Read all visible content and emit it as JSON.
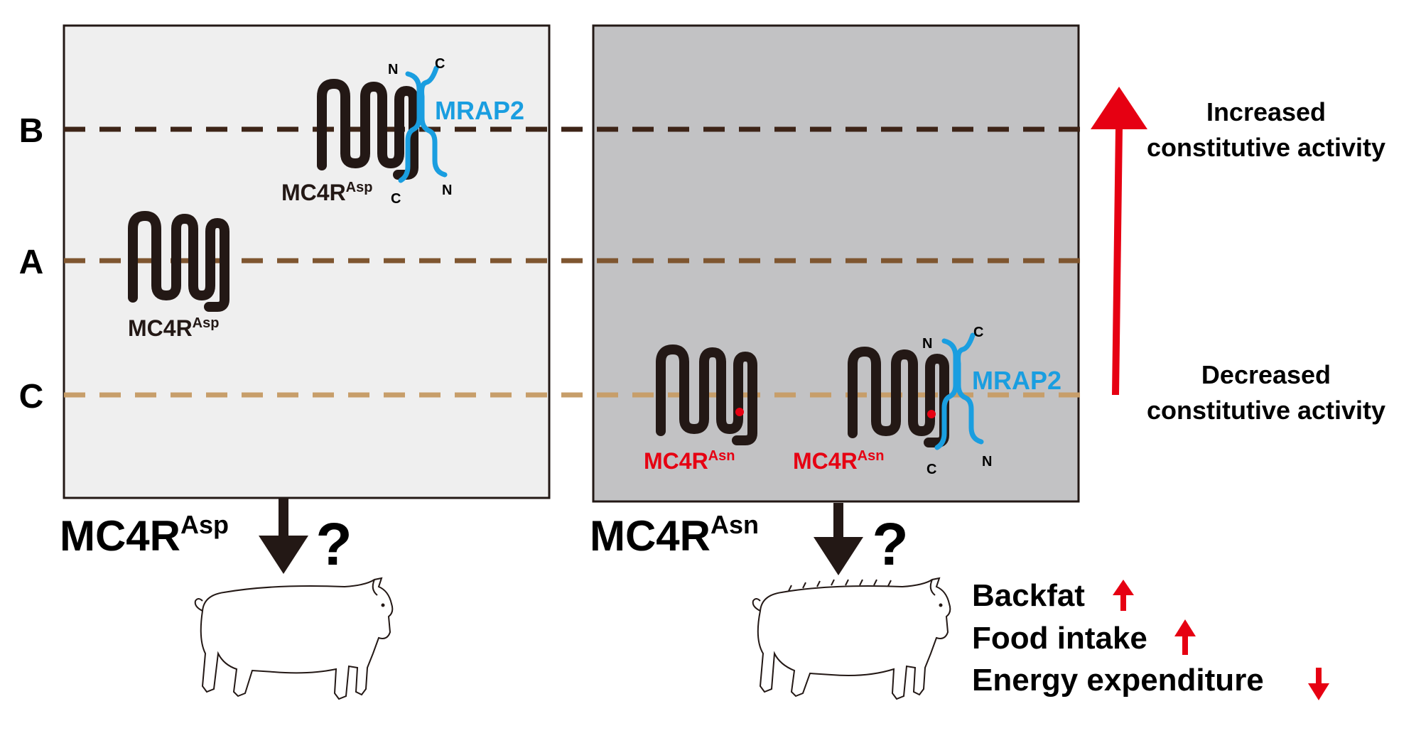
{
  "levels": {
    "b": "B",
    "a": "A",
    "c": "C"
  },
  "colors": {
    "line_b": "#3d2417",
    "line_a": "#7f5630",
    "line_c": "#c79e6a",
    "panel_left": "#efefef",
    "panel_right": "#c2c2c4",
    "receptor": "#231815",
    "mrap2": "#1a9ee0",
    "red": "#e60012"
  },
  "left_panel": {
    "receptor_top": {
      "label": "MC4R",
      "sup": "Asp"
    },
    "mrap2_label": "MRAP2",
    "mrap2_termini": {
      "n_top": "N",
      "c_top": "C",
      "c_bottom": "C",
      "n_bottom": "N"
    },
    "receptor_alone": {
      "label": "MC4R",
      "sup": "Asp"
    },
    "below_label": {
      "label": "MC4R",
      "sup": "Asp"
    },
    "question": "?"
  },
  "right_panel": {
    "receptor_alone": {
      "label": "MC4R",
      "sup": "Asn"
    },
    "receptor_complex": {
      "label": "MC4R",
      "sup": "Asn"
    },
    "mrap2_label": "MRAP2",
    "mrap2_termini": {
      "n_top": "N",
      "c_top": "C",
      "c_bottom": "C",
      "n_bottom": "N"
    },
    "below_label": {
      "label": "MC4R",
      "sup": "Asn"
    },
    "question": "?"
  },
  "activity": {
    "increased_line1": "Increased",
    "increased_line2": "constitutive activity",
    "decreased_line1": "Decreased",
    "decreased_line2": "constitutive activity"
  },
  "phenotypes": {
    "backfat": "Backfat",
    "food_intake": "Food intake",
    "energy_expenditure": "Energy expenditure"
  }
}
